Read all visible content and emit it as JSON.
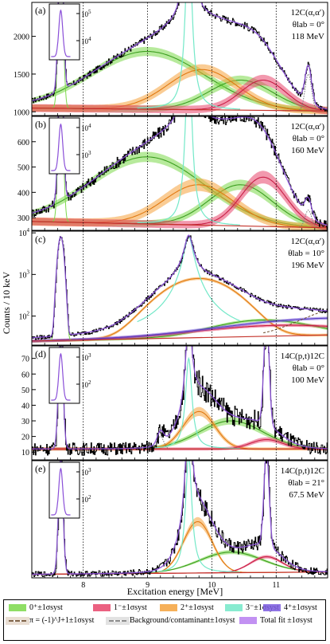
{
  "figure": {
    "xlabel": "Excitation energy [MeV]",
    "ylabel": "Counts / 10 keV",
    "x_ticks": [
      "8",
      "9",
      "10",
      "11"
    ]
  },
  "chart_data": [
    {
      "panel": "(a)",
      "type": "line",
      "reaction": "12C(α,α′)",
      "angle_label": "θlab = 0°",
      "energy_label": "118 MeV",
      "xlim": [
        7.2,
        11.8
      ],
      "ylim": [
        950,
        2450
      ],
      "yscale": "linear",
      "y_ticks": [
        1000,
        1500,
        2000
      ],
      "inset_y_ticks": [
        "10^5",
        "10^4"
      ],
      "components": {
        "zero_plus": {
          "center": 9.0,
          "width": 1.6,
          "amp": 1800,
          "band": 60
        },
        "two_plus": {
          "center": 9.85,
          "width": 1.2,
          "amp": 1560,
          "band": 70
        },
        "zero_plus_b": {
          "center": 10.45,
          "width": 1.1,
          "amp": 1420,
          "band": 60
        },
        "one_minus": {
          "center": 10.8,
          "width": 0.35,
          "amp": 1420,
          "band": 70
        },
        "three_minus": {
          "center": 9.64,
          "width": 0.06,
          "amp": 2400
        },
        "bg_peak": {
          "center": 11.5,
          "width": 0.05,
          "amp": 1500
        },
        "background": [
          1050,
          1010
        ]
      },
      "data_peaks": [
        {
          "x": 7.65,
          "y": 2400
        },
        {
          "x": 9.64,
          "y": 2400
        },
        {
          "x": 11.5,
          "y": 1500
        }
      ]
    },
    {
      "panel": "(b)",
      "type": "line",
      "reaction": "12C(α,α′)",
      "angle_label": "θlab = 0°",
      "energy_label": "160 MeV",
      "xlim": [
        7.2,
        11.8
      ],
      "ylim": [
        250,
        700
      ],
      "yscale": "linear",
      "y_ticks": [
        300,
        400,
        500,
        600
      ],
      "inset_y_ticks": [
        "10^4",
        "10^3"
      ],
      "components": {
        "zero_plus": {
          "center": 9.0,
          "width": 1.6,
          "amp": 540,
          "band": 20
        },
        "two_plus": {
          "center": 9.8,
          "width": 1.2,
          "amp": 430,
          "band": 25
        },
        "zero_plus_b": {
          "center": 10.45,
          "width": 1.1,
          "amp": 430,
          "band": 20
        },
        "one_minus": {
          "center": 10.8,
          "width": 0.35,
          "amp": 460,
          "band": 25
        },
        "three_minus": {
          "center": 9.64,
          "width": 0.06,
          "amp": 700
        },
        "bg_peak": {
          "center": 11.5,
          "width": 0.05,
          "amp": 330
        },
        "background": [
          285,
          260
        ]
      },
      "data_peaks": [
        {
          "x": 7.65,
          "y": 700
        },
        {
          "x": 9.64,
          "y": 700
        }
      ]
    },
    {
      "panel": "(c)",
      "type": "line",
      "reaction": "12C(α,α′)",
      "angle_label": "θlab = 10°",
      "energy_label": "196 MeV",
      "xlim": [
        7.2,
        11.8
      ],
      "ylim": [
        20,
        11000
      ],
      "yscale": "log",
      "y_ticks": [
        "10^2",
        "10^3",
        "10^4"
      ],
      "components": {
        "zero_plus": {
          "center": 10.8,
          "width": 1.2,
          "amp": 80
        },
        "two_plus": {
          "center": 9.8,
          "width": 1.0,
          "amp": 800
        },
        "one_minus": {
          "center": 11.1,
          "width": 1.1,
          "amp": 60
        },
        "four_plus": {
          "center": 12.0,
          "width": 1.4,
          "amp": 90
        },
        "three_minus": {
          "center": 9.64,
          "width": 0.06,
          "amp": 8000
        },
        "background": [
          25,
          35
        ]
      },
      "data_peaks": [
        {
          "x": 7.65,
          "y": 8000
        },
        {
          "x": 9.64,
          "y": 9000
        }
      ]
    },
    {
      "panel": "(d)",
      "type": "line",
      "reaction": "14C(p,t)12C",
      "angle_label": "θlab = 0°",
      "energy_label": "100 MeV",
      "xlim": [
        7.2,
        11.8
      ],
      "ylim": [
        5,
        78
      ],
      "yscale": "linear",
      "y_ticks": [
        10,
        20,
        30,
        40,
        50,
        60,
        70
      ],
      "inset_y_ticks": [
        "10^3",
        "10^2"
      ],
      "components": {
        "zero_plus": {
          "center": 10.3,
          "width": 0.9,
          "amp": 30
        },
        "two_plus": {
          "center": 9.8,
          "width": 0.55,
          "amp": 36
        },
        "one_minus": {
          "center": 10.85,
          "width": 0.25,
          "amp": 18
        },
        "three_minus": {
          "center": 9.64,
          "width": 0.06,
          "amp": 58
        },
        "four_plus_peak": {
          "center": 10.85,
          "width": 0.04,
          "amp": 70
        },
        "bg_peak": {
          "center": 9.2,
          "width": 0.05,
          "amp": 20
        },
        "background": [
          12,
          12
        ]
      },
      "data_peaks": [
        {
          "x": 7.65,
          "y": 78
        },
        {
          "x": 9.64,
          "y": 58
        },
        {
          "x": 10.85,
          "y": 72
        }
      ]
    },
    {
      "panel": "(e)",
      "type": "line",
      "reaction": "14C(p,t)12C",
      "angle_label": "θlab = 21°",
      "energy_label": "67.5 MeV",
      "xlim": [
        7.2,
        11.8
      ],
      "ylim": [
        0,
        100
      ],
      "yscale": "linear",
      "y_ticks": [],
      "inset_y_ticks": [
        "10^3",
        "10^2"
      ],
      "components": {
        "zero_plus": {
          "center": 10.3,
          "width": 0.9,
          "amp": 22
        },
        "two_plus": {
          "center": 9.78,
          "width": 0.5,
          "amp": 48
        },
        "one_minus": {
          "center": 10.85,
          "width": 0.25,
          "amp": 18
        },
        "three_minus": {
          "center": 9.64,
          "width": 0.06,
          "amp": 100
        },
        "four_plus_peak": {
          "center": 10.85,
          "width": 0.04,
          "amp": 80
        },
        "background": [
          3,
          5
        ]
      },
      "data_peaks": [
        {
          "x": 7.65,
          "y": 100
        },
        {
          "x": 9.64,
          "y": 100
        },
        {
          "x": 10.85,
          "y": 85
        }
      ]
    }
  ],
  "legend": {
    "items": [
      {
        "label": "0⁺±1σsyst",
        "color": "#7bd84a"
      },
      {
        "label": "1⁻±1σsyst",
        "color": "#e8456b"
      },
      {
        "label": "2⁺±1σsyst",
        "color": "#f5a23c"
      },
      {
        "label": "3⁻±1σsyst",
        "color": "#73e8c8"
      },
      {
        "label": "4⁺±1σsyst",
        "color": "#7b5ce0"
      },
      {
        "label": "π = (-1)^J+1±1σsyst",
        "color": "#b08a62"
      },
      {
        "label": "Background/contaminant±1σsyst",
        "color": "#9a9a9a"
      },
      {
        "label": "Total fit ±1σsyst",
        "color": "#b77ef0"
      }
    ]
  },
  "colors": {
    "data": "#000000",
    "total_fit": "#8a4fd8",
    "background_line": "#c4322a",
    "divider": "#000000"
  }
}
